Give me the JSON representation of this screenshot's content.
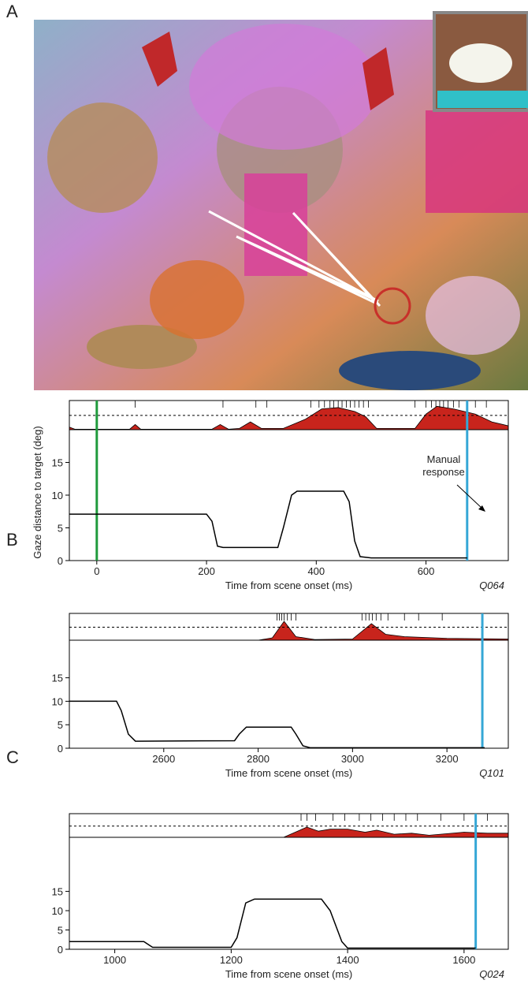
{
  "chart_data": [
    {
      "type": "line",
      "panel": "A",
      "xlabel": "Time from scene onset (ms)",
      "ylabel": "Gaze distance to target (deg)",
      "code": "Q064",
      "annotation_lines": [
        "Manual",
        "response"
      ],
      "xlim": [
        -50,
        750
      ],
      "xticks": [
        0,
        200,
        400,
        600
      ],
      "ylim": [
        0,
        20
      ],
      "yticks": [
        0,
        5,
        10,
        15
      ],
      "y2lim": [
        0,
        1
      ],
      "threshold": 0.55,
      "events": [
        70,
        230,
        290,
        310,
        390,
        405,
        415,
        425,
        432,
        440,
        447,
        455,
        462,
        470,
        478,
        486,
        495,
        580,
        600,
        610,
        618,
        625,
        632,
        640,
        650,
        660,
        675,
        690,
        710
      ],
      "markers": [
        {
          "x": 0,
          "color": "#1f9a3c"
        },
        {
          "x": 675,
          "color": "#35a7d6"
        }
      ],
      "series": [
        {
          "color": "#000000",
          "x": [
            -50,
            0,
            200,
            210,
            220,
            230,
            330,
            340,
            355,
            365,
            450,
            460,
            470,
            480,
            500,
            675
          ],
          "values": [
            7.1,
            7.1,
            7.1,
            6,
            2.2,
            2,
            2,
            5,
            10,
            10.6,
            10.6,
            9,
            3,
            0.6,
            0.4,
            0.4
          ]
        },
        {
          "type": "area",
          "axis": "y2",
          "color": "#c8241c",
          "x": [
            -50,
            -40,
            60,
            70,
            80,
            210,
            225,
            240,
            260,
            280,
            300,
            340,
            380,
            410,
            440,
            470,
            490,
            510,
            580,
            600,
            620,
            650,
            670,
            690,
            720,
            750
          ],
          "values": [
            0.1,
            0.02,
            0.02,
            0.2,
            0.02,
            0.02,
            0.2,
            0.02,
            0.05,
            0.3,
            0.05,
            0.05,
            0.4,
            0.8,
            0.85,
            0.7,
            0.5,
            0.05,
            0.05,
            0.6,
            0.9,
            0.8,
            0.7,
            0.6,
            0.3,
            0.15
          ]
        }
      ]
    },
    {
      "type": "line",
      "panel": "B",
      "xlabel": "Time from scene onset (ms)",
      "code": "Q101",
      "xlim": [
        2400,
        3330
      ],
      "xticks": [
        2600,
        2800,
        3000,
        3200
      ],
      "ylim": [
        0,
        23
      ],
      "yticks": [
        0,
        5,
        10,
        15
      ],
      "y2lim": [
        0,
        1
      ],
      "threshold": 0.55,
      "events": [
        2840,
        2845,
        2850,
        2855,
        2862,
        2870,
        2880,
        3020,
        3028,
        3035,
        3042,
        3050,
        3060,
        3075,
        3110,
        3140,
        3190
      ],
      "markers": [
        {
          "x": 3275,
          "color": "#35a7d6"
        }
      ],
      "series": [
        {
          "color": "#000000",
          "x": [
            2400,
            2500,
            2510,
            2525,
            2540,
            2750,
            2760,
            2775,
            2870,
            2880,
            2895,
            2910,
            3280
          ],
          "values": [
            10,
            10,
            8,
            3,
            1.5,
            1.6,
            3,
            4.5,
            4.5,
            3,
            0.5,
            0.1,
            0.1
          ]
        },
        {
          "type": "area",
          "axis": "y2",
          "color": "#c8241c",
          "x": [
            2800,
            2830,
            2855,
            2880,
            2920,
            3000,
            3040,
            3070,
            3110,
            3200,
            3330
          ],
          "values": [
            0,
            0.1,
            0.8,
            0.15,
            0.03,
            0.05,
            0.7,
            0.25,
            0.15,
            0.08,
            0.05
          ]
        }
      ]
    },
    {
      "type": "line",
      "panel": "C",
      "xlabel": "Time from scene onset (ms)",
      "code": "Q024",
      "xlim": [
        922,
        1676
      ],
      "xticks": [
        1000,
        1200,
        1400,
        1600
      ],
      "ylim": [
        0,
        29
      ],
      "yticks": [
        0,
        5,
        10,
        15
      ],
      "y2lim": [
        0,
        1
      ],
      "threshold": 0.55,
      "events": [
        1320,
        1330,
        1345,
        1375,
        1395,
        1420,
        1440,
        1460,
        1480,
        1500,
        1520,
        1560,
        1600,
        1620,
        1640
      ],
      "markers": [
        {
          "x": 1620,
          "color": "#35a7d6"
        }
      ],
      "series": [
        {
          "color": "#000000",
          "x": [
            922,
            1050,
            1060,
            1065,
            1200,
            1210,
            1225,
            1240,
            1355,
            1370,
            1390,
            1400,
            1620
          ],
          "values": [
            2,
            2,
            1,
            0.5,
            0.5,
            3,
            12,
            13,
            13,
            10,
            2,
            0.3,
            0.3
          ]
        },
        {
          "type": "area",
          "axis": "y2",
          "color": "#c8241c",
          "x": [
            1290,
            1330,
            1350,
            1370,
            1400,
            1430,
            1450,
            1480,
            1510,
            1540,
            1600,
            1640,
            1676
          ],
          "values": [
            0,
            0.5,
            0.3,
            0.4,
            0.4,
            0.25,
            0.35,
            0.15,
            0.2,
            0.1,
            0.25,
            0.2,
            0.2
          ]
        }
      ]
    }
  ]
}
